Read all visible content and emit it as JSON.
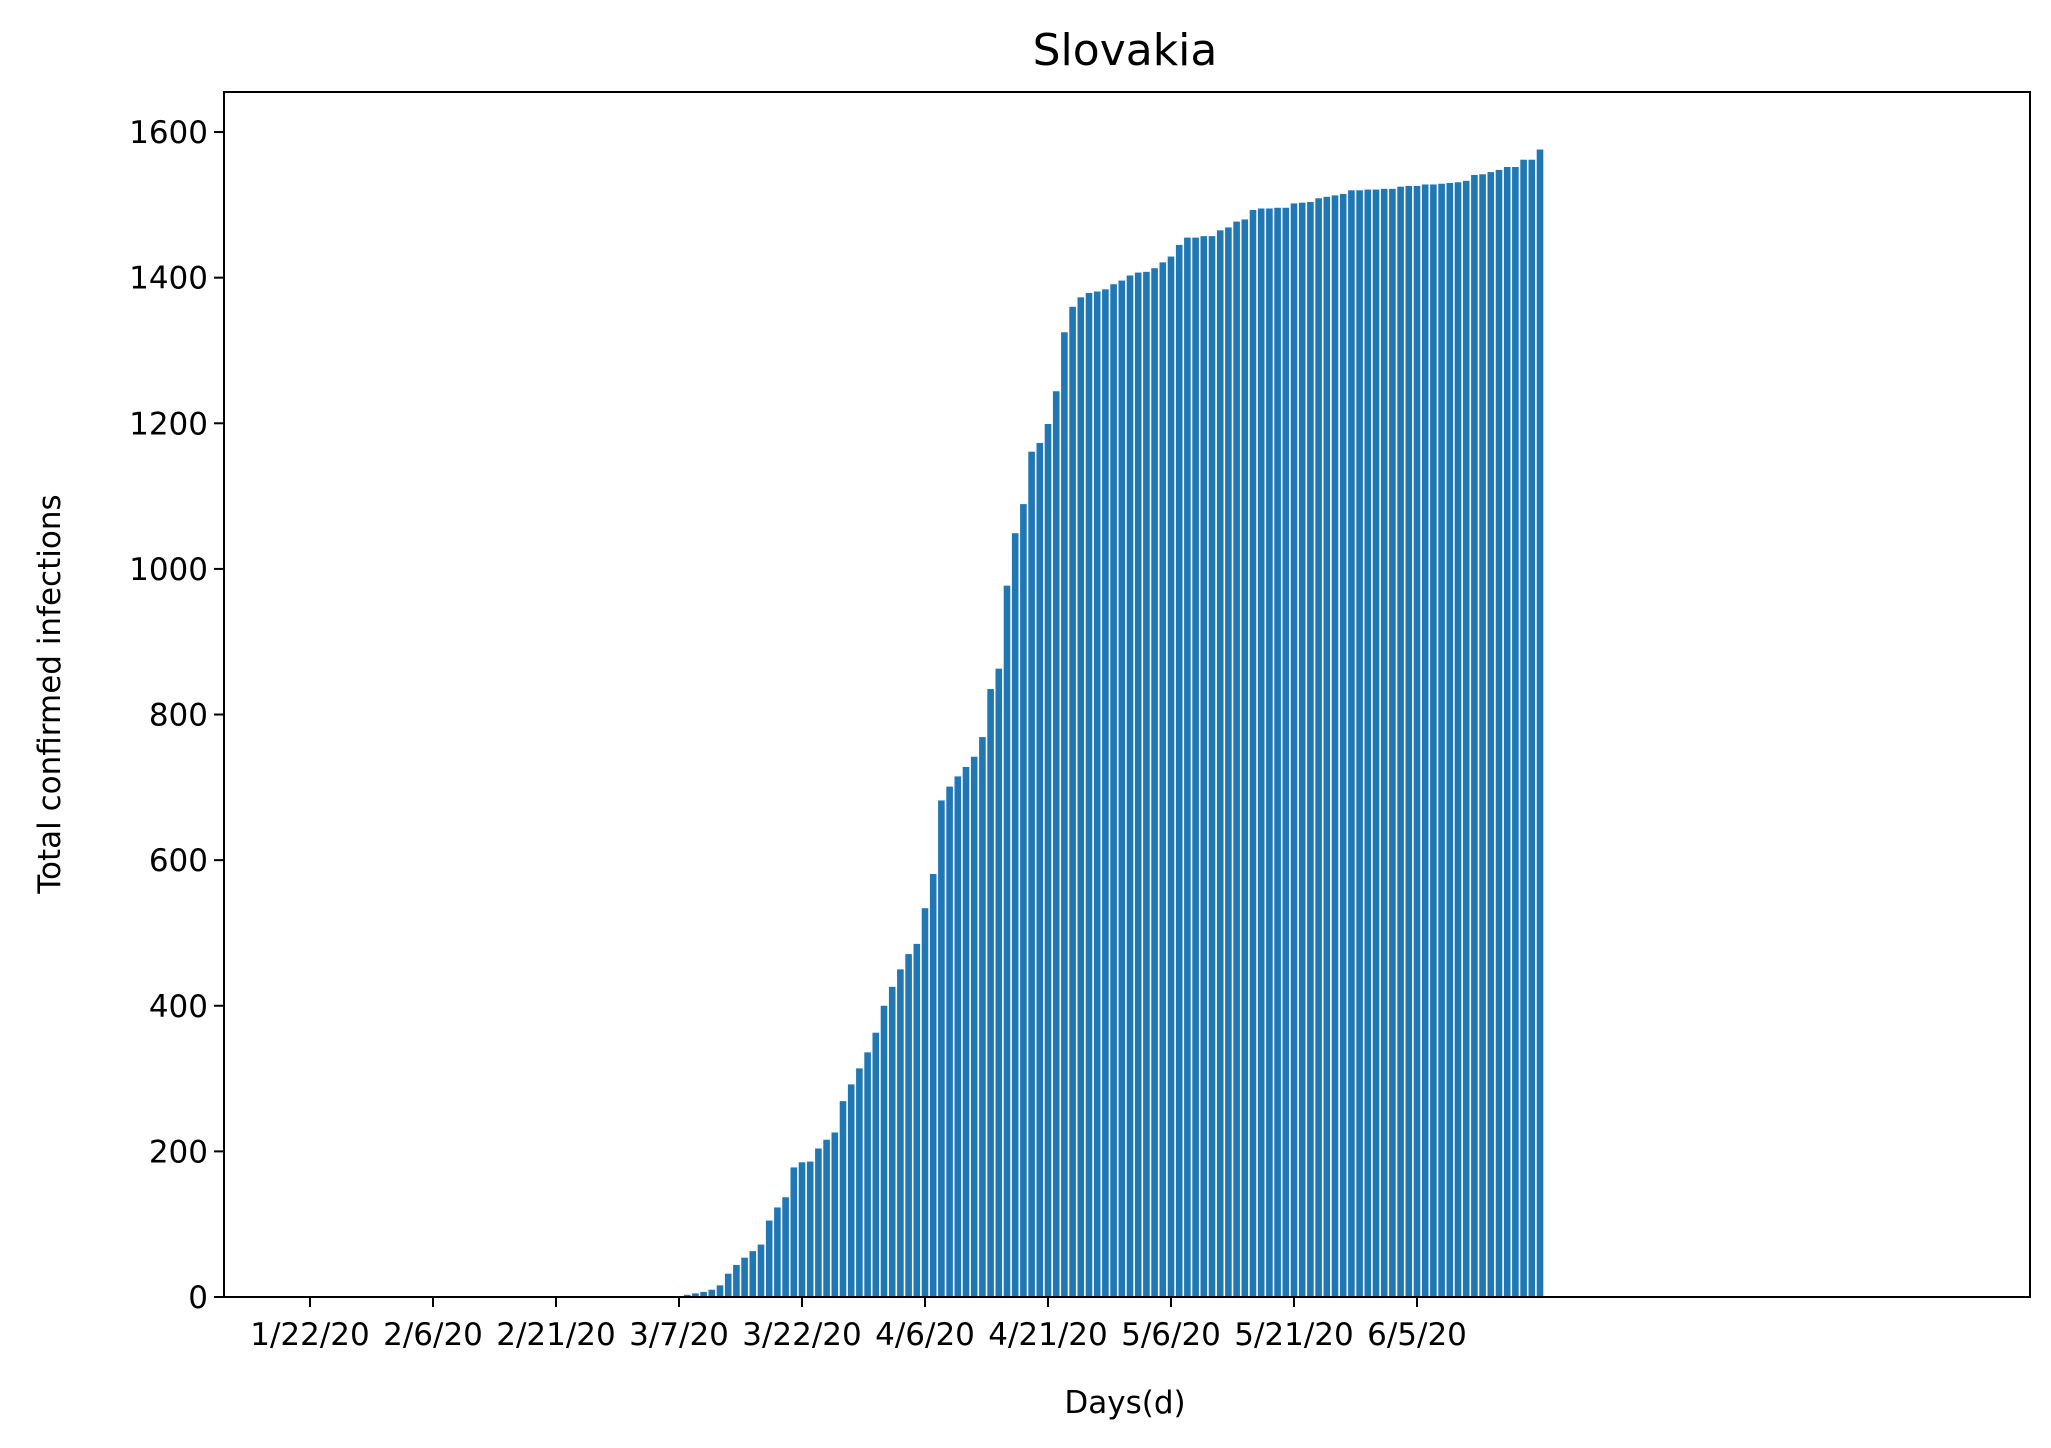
{
  "chart_data": {
    "type": "bar",
    "title": "Slovakia",
    "xlabel": "Days(d)",
    "ylabel": "Total confirmed infections",
    "x_tick_labels": [
      "1/22/20",
      "2/6/20",
      "2/21/20",
      "3/7/20",
      "3/22/20",
      "4/6/20",
      "4/21/20",
      "5/6/20",
      "5/21/20",
      "6/5/20"
    ],
    "y_ticks": [
      0,
      200,
      400,
      600,
      800,
      1000,
      1200,
      1400,
      1600
    ],
    "ylim": [
      0,
      1655
    ],
    "bar_color": "#1f77b4",
    "grid": false,
    "start_date": "1/22/20",
    "values": [
      0,
      0,
      0,
      0,
      0,
      0,
      0,
      0,
      0,
      0,
      0,
      0,
      0,
      0,
      0,
      0,
      0,
      0,
      0,
      0,
      0,
      0,
      0,
      0,
      0,
      0,
      0,
      0,
      0,
      0,
      0,
      0,
      0,
      0,
      0,
      0,
      0,
      0,
      0,
      0,
      0,
      0,
      0,
      0,
      0,
      1,
      3,
      5,
      7,
      10,
      16,
      32,
      44,
      54,
      63,
      72,
      105,
      123,
      137,
      178,
      185,
      186,
      204,
      216,
      226,
      269,
      292,
      314,
      336,
      363,
      400,
      426,
      450,
      471,
      485,
      534,
      581,
      682,
      701,
      715,
      728,
      742,
      769,
      835,
      863,
      977,
      1049,
      1089,
      1161,
      1173,
      1199,
      1244,
      1325,
      1360,
      1373,
      1379,
      1381,
      1384,
      1391,
      1396,
      1403,
      1407,
      1408,
      1413,
      1421,
      1429,
      1445,
      1455,
      1455,
      1457,
      1457,
      1465,
      1469,
      1477,
      1480,
      1493,
      1495,
      1495,
      1496,
      1496,
      1502,
      1503,
      1504,
      1509,
      1511,
      1513,
      1515,
      1520,
      1520,
      1521,
      1521,
      1522,
      1522,
      1525,
      1526,
      1526,
      1528,
      1528,
      1529,
      1530,
      1531,
      1533,
      1541,
      1542,
      1545,
      1548,
      1552,
      1552,
      1562,
      1562,
      1576
    ]
  }
}
